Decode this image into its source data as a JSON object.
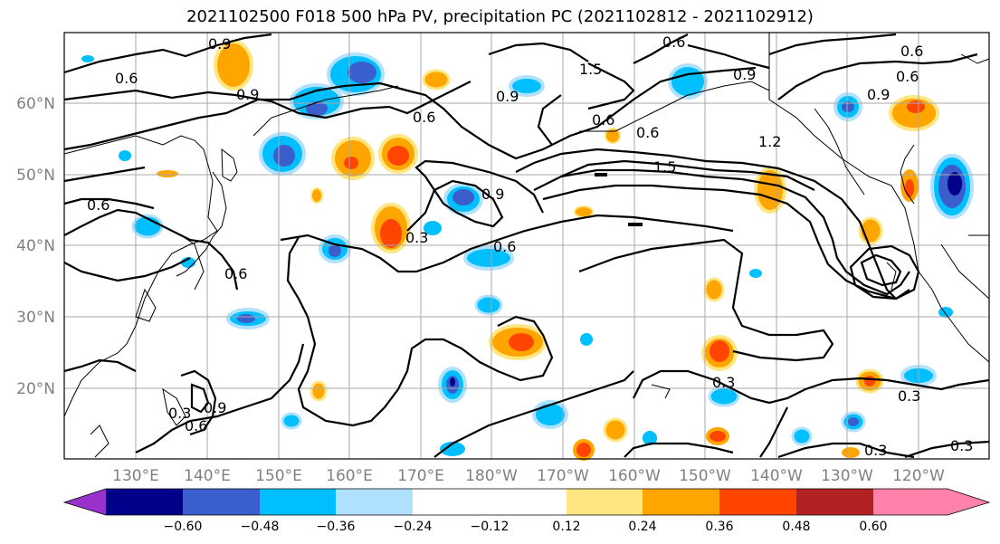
{
  "title": "2021102500 F018 500 hPa PV, precipitation PC (2021102812 - 2021102912)",
  "lat_labels": [
    "60°N",
    "50°N",
    "40°N",
    "30°N",
    "20°N"
  ],
  "lon_labels": [
    "130°E",
    "140°E",
    "150°E",
    "160°E",
    "170°E",
    "180°W",
    "170°W",
    "160°W",
    "150°W",
    "140°W",
    "130°W",
    "120°W"
  ],
  "colorbar": {
    "colors": [
      "#9932cc",
      "#00008b",
      "#3a5fcd",
      "#00bfff",
      "#b0e2ff",
      "#ffffff",
      "#ffe680",
      "#ffa500",
      "#ff4500",
      "#b22222",
      "#ff82ab"
    ],
    "tick_labels": [
      "−0.60",
      "−0.48",
      "−0.36",
      "−0.24",
      "−0.12",
      "0.12",
      "0.24",
      "0.36",
      "0.48",
      "0.60"
    ]
  },
  "contour_labels": [
    "0.9",
    "0.6",
    "0.9",
    "0.6",
    "0.6",
    "0.6",
    "0.9",
    "1.5",
    "0.6",
    "0.9",
    "0.6",
    "0.9",
    "1.2",
    "1.5",
    "0.6",
    "0.6",
    "0.9",
    "0.3",
    "0.6",
    "0.6",
    "0.3",
    "0.9",
    "0.6",
    "0.3",
    "0.3",
    "0.3",
    "0.3"
  ]
}
